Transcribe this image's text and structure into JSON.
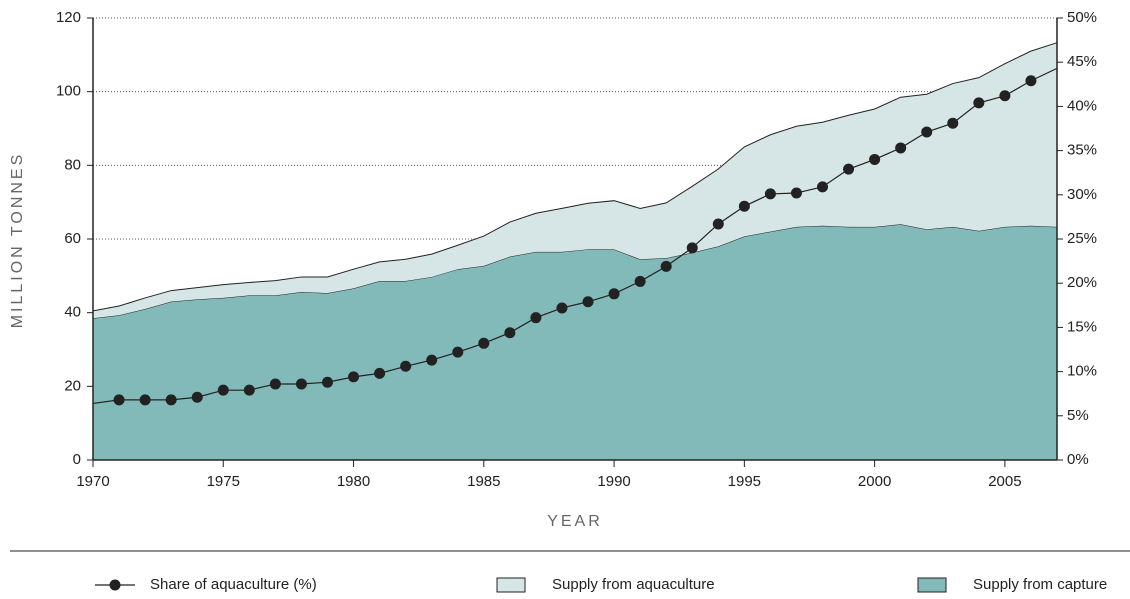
{
  "chart_data": {
    "type": "stacked-area-line",
    "x": [
      1970,
      1971,
      1972,
      1973,
      1974,
      1975,
      1976,
      1977,
      1978,
      1979,
      1980,
      1981,
      1982,
      1983,
      1984,
      1985,
      1986,
      1987,
      1988,
      1989,
      1990,
      1991,
      1992,
      1993,
      1994,
      1995,
      1996,
      1997,
      1998,
      1999,
      2000,
      2001,
      2002,
      2003,
      2004,
      2005,
      2006,
      2007
    ],
    "xlabel": "YEAR",
    "ylabel": "MILLION TONNES",
    "xlim": [
      1970,
      2007
    ],
    "xticks": [
      1970,
      1975,
      1980,
      1985,
      1990,
      1995,
      2000,
      2005
    ],
    "ylim": [
      0,
      120
    ],
    "yticks": [
      0,
      20,
      40,
      60,
      80,
      100,
      120
    ],
    "y2lim": [
      0,
      50
    ],
    "y2ticks": [
      {
        "value": 0,
        "label": "0%"
      },
      {
        "value": 5,
        "label": "5%"
      },
      {
        "value": 10,
        "label": "10%"
      },
      {
        "value": 15,
        "label": "15%"
      },
      {
        "value": 20,
        "label": "20%"
      },
      {
        "value": 25,
        "label": "25%"
      },
      {
        "value": 30,
        "label": "30%"
      },
      {
        "value": 35,
        "label": "35%"
      },
      {
        "value": 40,
        "label": "40%"
      },
      {
        "value": 45,
        "label": "45%"
      },
      {
        "value": 50,
        "label": "50%"
      }
    ],
    "grid": true,
    "series": [
      {
        "name": "Supply from capture",
        "kind": "area",
        "color": "#82b9b9",
        "values": [
          38.5,
          39.3,
          41,
          43,
          43.6,
          44,
          44.7,
          44.7,
          45.6,
          45.3,
          46.6,
          48.6,
          48.6,
          49.7,
          51.8,
          52.7,
          55.2,
          56.5,
          56.5,
          57.2,
          57.2,
          54.5,
          54.8,
          56.3,
          58,
          60.7,
          62,
          63.3,
          63.6,
          63.3,
          63.3,
          64,
          62.6,
          63.3,
          62.2,
          63.3,
          63.6,
          63.3
        ]
      },
      {
        "name": "Supply from aquaculture",
        "kind": "area",
        "color": "#d6e6e6",
        "values": [
          2.0,
          2.5,
          3.0,
          3.0,
          3.2,
          3.6,
          3.5,
          4.0,
          4.1,
          4.4,
          5.2,
          5.2,
          5.9,
          6.2,
          6.5,
          8.1,
          9.4,
          10.5,
          11.8,
          12.5,
          13.2,
          13.8,
          15.0,
          18.0,
          21.0,
          24.3,
          26.3,
          27.3,
          28.1,
          30.3,
          32.0,
          34.5,
          36.7,
          38.9,
          41.6,
          44.3,
          47.4,
          50.0
        ]
      },
      {
        "name": "Share of aquaculture (%)",
        "kind": "line",
        "axis": "y2",
        "color": "#222222",
        "values": [
          6.4,
          6.8,
          6.8,
          6.8,
          7.1,
          7.9,
          7.9,
          8.6,
          8.6,
          8.8,
          9.4,
          9.8,
          10.6,
          11.3,
          12.2,
          13.2,
          14.4,
          16.1,
          17.2,
          17.9,
          18.8,
          20.2,
          21.9,
          24.0,
          26.7,
          28.7,
          30.1,
          30.2,
          30.9,
          32.9,
          34.0,
          35.3,
          37.1,
          38.1,
          40.4,
          41.2,
          42.9,
          44.3
        ]
      }
    ]
  }
}
